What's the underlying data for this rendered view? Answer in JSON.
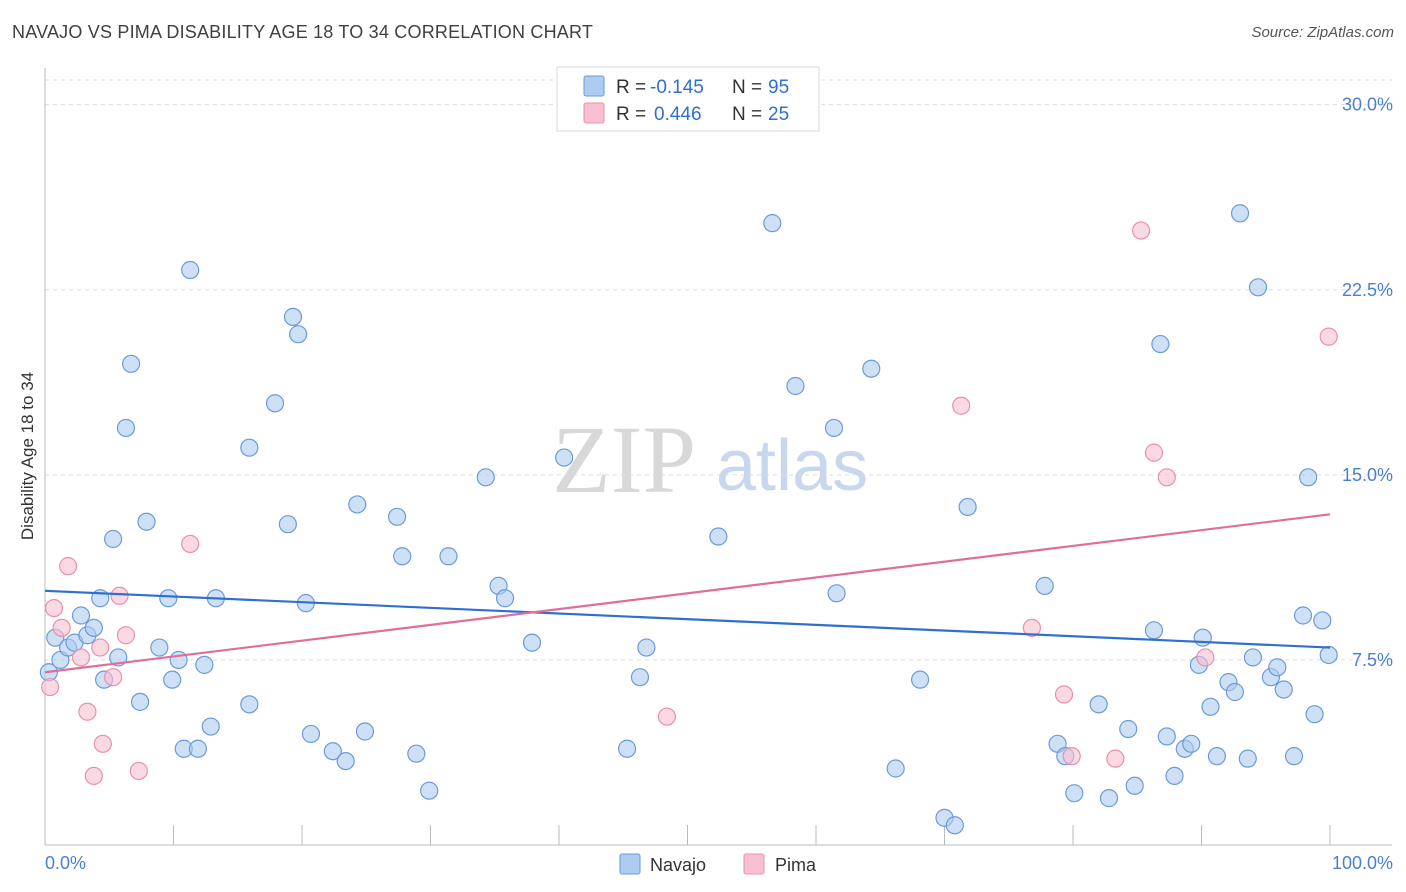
{
  "header": {
    "title": "NAVAJO VS PIMA DISABILITY AGE 18 TO 34 CORRELATION CHART",
    "source": "Source: ZipAtlas.com"
  },
  "watermark": {
    "zip": "ZIP",
    "atlas": "atlas"
  },
  "colors": {
    "navajo_fill": "#aecbf0",
    "navajo_stroke": "#6b9bd8",
    "navajo_line": "#2f6fcf",
    "pima_fill": "#f8bfd0",
    "pima_stroke": "#e890ae",
    "pima_line": "#e06e98",
    "tick_text": "#4a7fd0",
    "grid": "#dcdcdc"
  },
  "legend_top": {
    "rows": [
      {
        "r_label": "R =",
        "r_value": "-0.145",
        "n_label": "N =",
        "n_value": "95"
      },
      {
        "r_label": "R =",
        "r_value": "0.446",
        "n_label": "N =",
        "n_value": "25"
      }
    ]
  },
  "chart_data": {
    "type": "scatter",
    "title": "NAVAJO VS PIMA DISABILITY AGE 18 TO 34 CORRELATION CHART",
    "xlabel": "",
    "ylabel": "Disability Age 18 to 34",
    "xlim": [
      0,
      100
    ],
    "ylim": [
      0,
      31
    ],
    "x_tick_labels": [
      "0.0%",
      "100.0%"
    ],
    "y_ticks": [
      7.5,
      15.0,
      22.5,
      30.0
    ],
    "y_tick_labels": [
      "7.5%",
      "15.0%",
      "22.5%",
      "30.0%"
    ],
    "legend": [
      "Navajo",
      "Pima"
    ],
    "series": [
      {
        "name": "Navajo",
        "r": -0.145,
        "n": 95,
        "trend": {
          "x": [
            0,
            100
          ],
          "y": [
            10.3,
            8.0
          ]
        },
        "points": [
          [
            0.3,
            7.0
          ],
          [
            0.8,
            8.4
          ],
          [
            1.2,
            7.5
          ],
          [
            1.8,
            8.0
          ],
          [
            2.3,
            8.2
          ],
          [
            2.8,
            9.3
          ],
          [
            3.3,
            8.5
          ],
          [
            3.8,
            8.8
          ],
          [
            4.3,
            10.0
          ],
          [
            4.6,
            6.7
          ],
          [
            5.3,
            12.4
          ],
          [
            5.7,
            7.6
          ],
          [
            6.3,
            16.9
          ],
          [
            6.7,
            19.5
          ],
          [
            7.4,
            5.8
          ],
          [
            7.9,
            13.1
          ],
          [
            8.9,
            8.0
          ],
          [
            9.6,
            10.0
          ],
          [
            9.9,
            6.7
          ],
          [
            10.4,
            7.5
          ],
          [
            10.8,
            3.9
          ],
          [
            11.3,
            23.3
          ],
          [
            11.9,
            3.9
          ],
          [
            12.4,
            7.3
          ],
          [
            12.9,
            4.8
          ],
          [
            13.3,
            10.0
          ],
          [
            15.9,
            16.1
          ],
          [
            15.9,
            5.7
          ],
          [
            17.9,
            17.9
          ],
          [
            18.9,
            13.0
          ],
          [
            19.3,
            21.4
          ],
          [
            19.7,
            20.7
          ],
          [
            20.3,
            9.8
          ],
          [
            20.7,
            4.5
          ],
          [
            22.4,
            3.8
          ],
          [
            23.4,
            3.4
          ],
          [
            24.3,
            13.8
          ],
          [
            24.9,
            4.6
          ],
          [
            27.4,
            13.3
          ],
          [
            27.8,
            11.7
          ],
          [
            28.9,
            3.7
          ],
          [
            29.9,
            2.2
          ],
          [
            31.4,
            11.7
          ],
          [
            34.3,
            14.9
          ],
          [
            35.3,
            10.5
          ],
          [
            35.8,
            10.0
          ],
          [
            37.9,
            8.2
          ],
          [
            40.4,
            15.7
          ],
          [
            45.3,
            3.9
          ],
          [
            46.3,
            6.8
          ],
          [
            46.8,
            8.0
          ],
          [
            52.4,
            12.5
          ],
          [
            56.6,
            25.2
          ],
          [
            58.4,
            18.6
          ],
          [
            61.4,
            16.9
          ],
          [
            61.6,
            10.2
          ],
          [
            64.3,
            19.3
          ],
          [
            66.2,
            3.1
          ],
          [
            68.1,
            6.7
          ],
          [
            70.0,
            1.1
          ],
          [
            70.8,
            0.8
          ],
          [
            71.8,
            13.7
          ],
          [
            77.8,
            10.5
          ],
          [
            78.8,
            4.1
          ],
          [
            79.4,
            3.6
          ],
          [
            80.1,
            2.1
          ],
          [
            82.0,
            5.7
          ],
          [
            82.8,
            1.9
          ],
          [
            84.3,
            4.7
          ],
          [
            84.8,
            2.4
          ],
          [
            86.3,
            8.7
          ],
          [
            86.8,
            20.3
          ],
          [
            87.3,
            4.4
          ],
          [
            87.9,
            2.8
          ],
          [
            88.7,
            3.9
          ],
          [
            89.2,
            4.1
          ],
          [
            89.8,
            7.3
          ],
          [
            90.1,
            8.4
          ],
          [
            90.7,
            5.6
          ],
          [
            91.2,
            3.6
          ],
          [
            92.1,
            6.6
          ],
          [
            92.6,
            6.2
          ],
          [
            93.0,
            25.6
          ],
          [
            93.6,
            3.5
          ],
          [
            94.0,
            7.6
          ],
          [
            94.4,
            22.6
          ],
          [
            95.4,
            6.8
          ],
          [
            95.9,
            7.2
          ],
          [
            96.4,
            6.3
          ],
          [
            97.2,
            3.6
          ],
          [
            97.9,
            9.3
          ],
          [
            98.3,
            14.9
          ],
          [
            98.8,
            5.3
          ],
          [
            99.4,
            9.1
          ],
          [
            99.9,
            7.7
          ]
        ]
      },
      {
        "name": "Pima",
        "r": 0.446,
        "n": 25,
        "trend": {
          "x": [
            0,
            100
          ],
          "y": [
            7.0,
            13.4
          ]
        },
        "points": [
          [
            0.4,
            6.4
          ],
          [
            0.7,
            9.6
          ],
          [
            1.3,
            8.8
          ],
          [
            1.8,
            11.3
          ],
          [
            2.8,
            7.6
          ],
          [
            3.3,
            5.4
          ],
          [
            3.8,
            2.8
          ],
          [
            4.3,
            8.0
          ],
          [
            4.5,
            4.1
          ],
          [
            5.3,
            6.8
          ],
          [
            5.8,
            10.1
          ],
          [
            6.3,
            8.5
          ],
          [
            7.3,
            3.0
          ],
          [
            11.3,
            12.2
          ],
          [
            48.4,
            5.2
          ],
          [
            71.3,
            17.8
          ],
          [
            76.8,
            8.8
          ],
          [
            79.3,
            6.1
          ],
          [
            79.9,
            3.6
          ],
          [
            83.3,
            3.5
          ],
          [
            85.3,
            24.9
          ],
          [
            86.3,
            15.9
          ],
          [
            87.3,
            14.9
          ],
          [
            90.3,
            7.6
          ],
          [
            99.9,
            20.6
          ]
        ]
      }
    ]
  }
}
